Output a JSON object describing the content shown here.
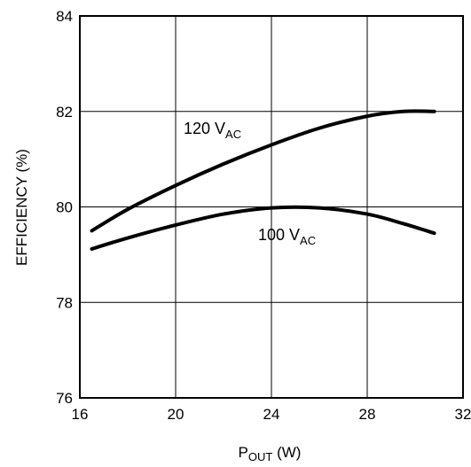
{
  "chart_data": {
    "type": "line",
    "title": "",
    "xlabel": {
      "main": "P",
      "sub": "OUT",
      "unit": " (W)"
    },
    "ylabel": "EFFICIENCY (%)",
    "xlim": [
      16,
      32
    ],
    "ylim": [
      76,
      84
    ],
    "x_ticks": [
      "16",
      "20",
      "24",
      "28",
      "32"
    ],
    "y_ticks": [
      "76",
      "78",
      "80",
      "82",
      "84"
    ],
    "grid": true,
    "legend": "none",
    "series": [
      {
        "label_main": "120 V",
        "label_sub": "AC",
        "x": [
          16.5,
          18,
          20,
          22,
          24,
          26,
          28,
          29.5,
          30.8
        ],
        "y": [
          79.5,
          79.95,
          80.45,
          80.9,
          81.3,
          81.65,
          81.9,
          82.0,
          82.0
        ]
      },
      {
        "label_main": "100 V",
        "label_sub": "AC",
        "x": [
          16.5,
          18,
          20,
          22,
          24,
          26,
          28,
          29.5,
          30.8
        ],
        "y": [
          79.12,
          79.35,
          79.62,
          79.85,
          79.98,
          79.98,
          79.85,
          79.65,
          79.45
        ]
      }
    ]
  }
}
